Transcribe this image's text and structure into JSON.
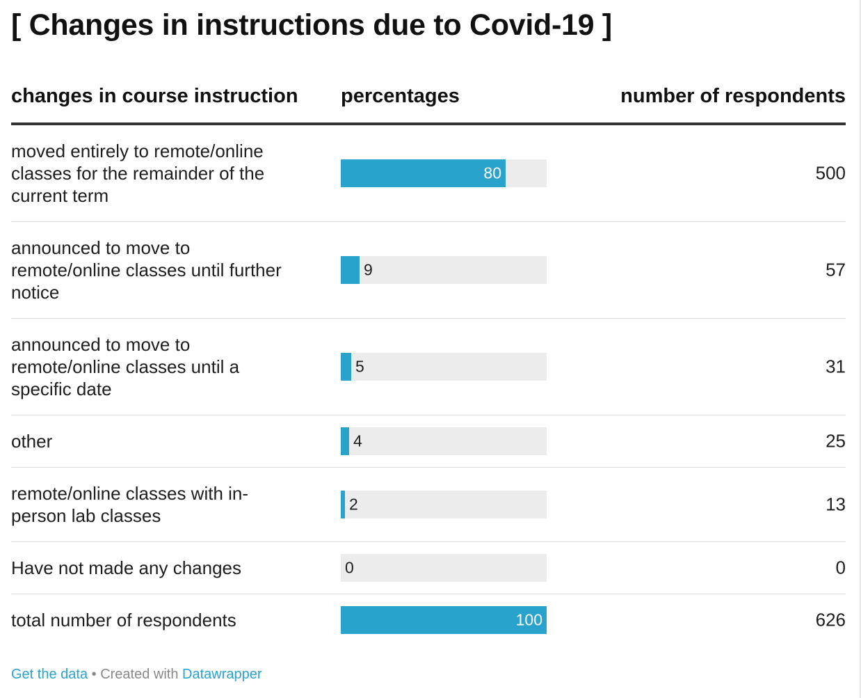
{
  "title": "[ Changes in instructions due to Covid-19 ]",
  "columns": {
    "label": "changes in course instruction",
    "percent": "percentages",
    "count": "number of respondents"
  },
  "chart_data": {
    "type": "table",
    "xlim": [
      0,
      100
    ],
    "bar_color": "#29a2cc",
    "track_color": "#ececec",
    "rows": [
      {
        "label": "moved entirely to remote/online classes for the remainder of the current term",
        "percent": 80,
        "count": 500
      },
      {
        "label": "announced to move to remote/online classes until further notice",
        "percent": 9,
        "count": 57
      },
      {
        "label": "announced to move to remote/online classes until a specific date",
        "percent": 5,
        "count": 31
      },
      {
        "label": "other",
        "percent": 4,
        "count": 25
      },
      {
        "label": "remote/online classes with in-person lab classes",
        "percent": 2,
        "count": 13
      },
      {
        "label": "Have not made any changes",
        "percent": 0,
        "count": 0
      },
      {
        "label": "total number of respondents",
        "percent": 100,
        "count": 626
      }
    ]
  },
  "footer": {
    "get_data": "Get the data",
    "separator": " • Created with ",
    "tool": "Datawrapper"
  }
}
